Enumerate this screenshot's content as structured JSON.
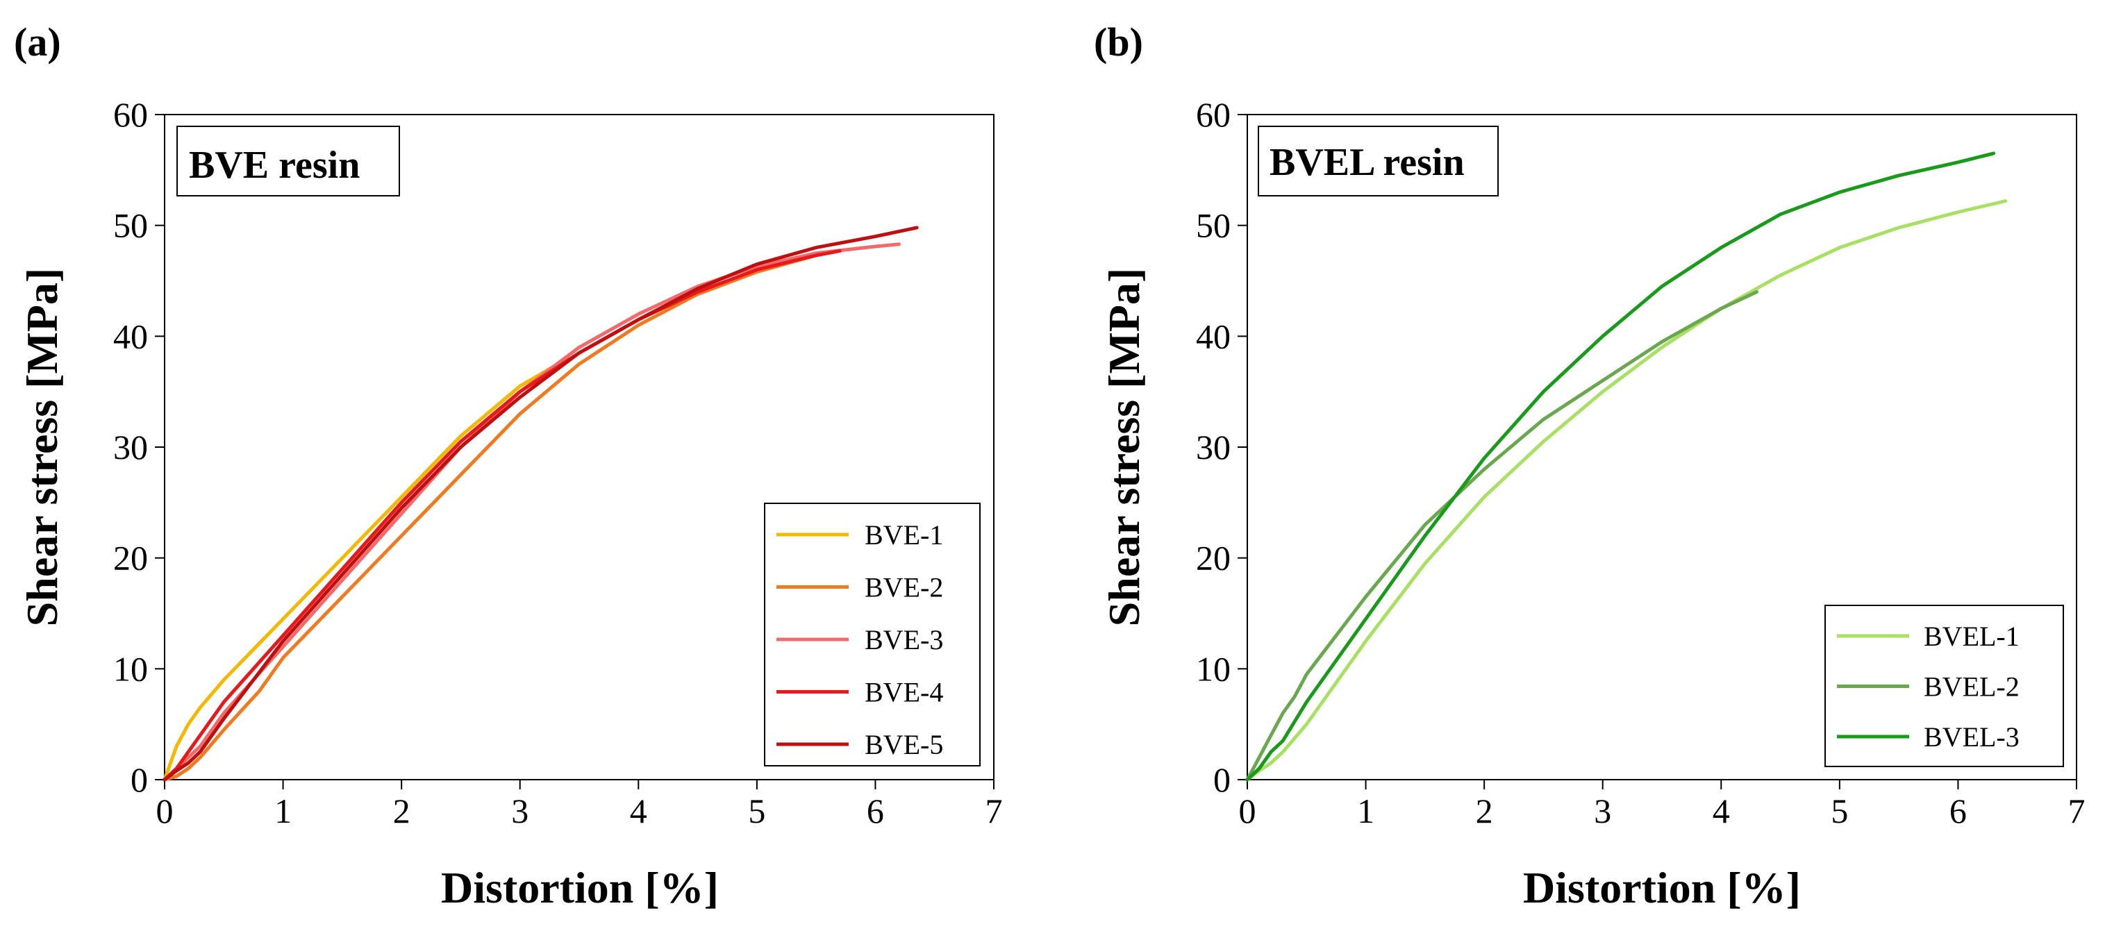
{
  "chart_data": [
    {
      "type": "line",
      "panel_label": "(a)",
      "title": "BVE resin",
      "xlabel": "Distortion [%]",
      "ylabel": "Shear stress [MPa]",
      "xlim": [
        0,
        7
      ],
      "ylim": [
        0,
        60
      ],
      "xticks": [
        0,
        1,
        2,
        3,
        4,
        5,
        6,
        7
      ],
      "yticks": [
        0,
        10,
        20,
        30,
        40,
        50,
        60
      ],
      "grid": false,
      "legend": "bottom-right",
      "series": [
        {
          "name": "BVE-1",
          "color": "#F5B800",
          "x": [
            0,
            0.05,
            0.1,
            0.2,
            0.3,
            0.5,
            1,
            1.5,
            2,
            2.5,
            3,
            3.4
          ],
          "y": [
            0,
            1.5,
            3,
            5,
            6.5,
            9,
            14.5,
            20,
            25.5,
            31,
            35.5,
            38
          ]
        },
        {
          "name": "BVE-2",
          "color": "#F07A20",
          "x": [
            0,
            0.1,
            0.2,
            0.3,
            0.5,
            0.8,
            1,
            1.5,
            2,
            2.5,
            3,
            3.5,
            4,
            4.5,
            5,
            5.5,
            5.65
          ],
          "y": [
            0,
            0.3,
            1,
            2,
            4.5,
            8,
            11,
            16.5,
            22,
            27.5,
            33,
            37.5,
            41,
            43.8,
            45.8,
            47.3,
            47.6
          ]
        },
        {
          "name": "BVE-3",
          "color": "#F26B6B",
          "x": [
            0,
            0.1,
            0.3,
            0.5,
            1,
            1.5,
            2,
            2.5,
            3,
            3.5,
            4,
            4.5,
            5,
            5.5,
            6,
            6.2
          ],
          "y": [
            0,
            1,
            3,
            6,
            12,
            18,
            24,
            30,
            35,
            39,
            42,
            44.5,
            46.3,
            47.5,
            48.1,
            48.3
          ]
        },
        {
          "name": "BVE-4",
          "color": "#E8191A",
          "x": [
            0,
            0.1,
            0.3,
            0.5,
            1,
            1.5,
            2,
            2.5,
            3,
            3.5,
            4,
            4.5,
            5,
            5.5,
            5.7
          ],
          "y": [
            0,
            1,
            4,
            7,
            13,
            19,
            25,
            30.5,
            35,
            38.5,
            41.5,
            44,
            46,
            47.3,
            47.7
          ]
        },
        {
          "name": "BVE-5",
          "color": "#BE1010",
          "x": [
            0,
            0.1,
            0.2,
            0.3,
            0.5,
            1,
            1.5,
            2,
            2.5,
            3,
            3.5,
            4,
            4.5,
            5,
            5.5,
            6,
            6.35
          ],
          "y": [
            0,
            0.8,
            1.5,
            2.5,
            5.5,
            12.5,
            18.5,
            24.5,
            30,
            34.5,
            38.5,
            41.5,
            44.3,
            46.5,
            48,
            49,
            49.8
          ]
        }
      ]
    },
    {
      "type": "line",
      "panel_label": "(b)",
      "title": "BVEL resin",
      "xlabel": "Distortion [%]",
      "ylabel": "Shear stress [MPa]",
      "xlim": [
        0,
        7
      ],
      "ylim": [
        0,
        60
      ],
      "xticks": [
        0,
        1,
        2,
        3,
        4,
        5,
        6,
        7
      ],
      "yticks": [
        0,
        10,
        20,
        30,
        40,
        50,
        60
      ],
      "grid": false,
      "legend": "bottom-right",
      "series": [
        {
          "name": "BVEL-1",
          "color": "#A8E063",
          "x": [
            0,
            0.1,
            0.2,
            0.3,
            0.5,
            1,
            1.5,
            2,
            2.5,
            3,
            3.5,
            4,
            4.5,
            5,
            5.5,
            6,
            6.4
          ],
          "y": [
            0,
            0.8,
            1.5,
            2.5,
            5,
            12.5,
            19.5,
            25.5,
            30.5,
            35,
            39,
            42.5,
            45.5,
            48,
            49.8,
            51.2,
            52.2
          ]
        },
        {
          "name": "BVEL-2",
          "color": "#6AA84F",
          "x": [
            0,
            0.1,
            0.2,
            0.3,
            0.4,
            0.5,
            1,
            1.5,
            2,
            2.5,
            3,
            3.5,
            4,
            4.3
          ],
          "y": [
            0,
            2,
            4,
            6,
            7.5,
            9.5,
            16.5,
            23,
            28,
            32.5,
            36,
            39.5,
            42.5,
            44
          ]
        },
        {
          "name": "BVEL-3",
          "color": "#1A9A1A",
          "x": [
            0,
            0.1,
            0.2,
            0.3,
            0.5,
            1,
            1.5,
            2,
            2.5,
            3,
            3.5,
            4,
            4.5,
            5,
            5.5,
            6,
            6.3
          ],
          "y": [
            0,
            1,
            2.5,
            3.5,
            7,
            14.5,
            22,
            29,
            35,
            40,
            44.5,
            48,
            51,
            53,
            54.5,
            55.7,
            56.5
          ]
        }
      ]
    }
  ]
}
